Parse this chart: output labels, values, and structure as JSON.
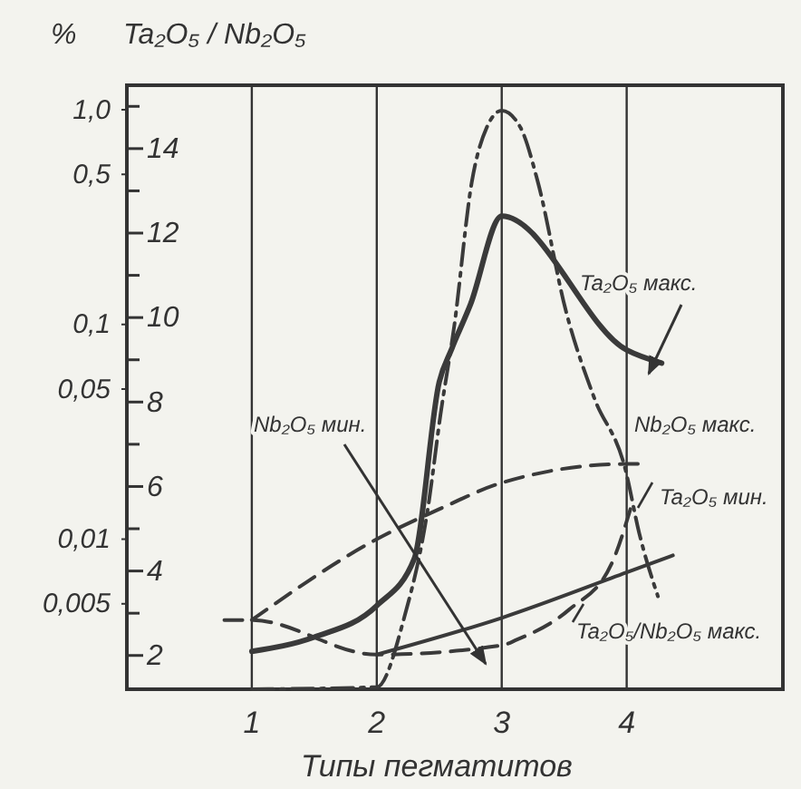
{
  "chart_data": {
    "type": "line",
    "xlabel": "Типы пегматитов",
    "ylabel": "Ta₂O₅ / Nb₂O₅",
    "y2label": "%",
    "xlim": [
      0,
      5.25
    ],
    "xticks": [
      1,
      2,
      3,
      4
    ],
    "ylim": [
      1.2,
      15.5
    ],
    "yticks": [
      2,
      {
        "value": 3,
        "label": null
      },
      4,
      {
        "value": 5,
        "label": null
      },
      6,
      {
        "value": 7,
        "label": null
      },
      8,
      {
        "value": 9,
        "label": null
      },
      10,
      {
        "value": 11,
        "label": null
      },
      12,
      {
        "value": 13,
        "label": null
      },
      14,
      {
        "value": 15,
        "label": null
      }
    ],
    "y2lim": [
      0.002,
      1.3
    ],
    "y2ticks": [
      {
        "value": 1,
        "label": "1,0"
      },
      {
        "value": 0.5,
        "label": "0,5"
      },
      {
        "value": 0.1,
        "label": "0,1"
      },
      {
        "value": 0.05,
        "label": "0,05"
      },
      {
        "value": 0.01,
        "label": "0,01"
      },
      {
        "value": 0.005,
        "label": "0,005"
      }
    ],
    "log": "y2",
    "grid": "x",
    "marker": "none",
    "series": [
      {
        "color": "#3a3a3a",
        "axis": "y2",
        "line_style": "solid",
        "x": [
          1,
          1.5,
          2,
          2.3,
          2.5,
          2.6,
          2.75,
          3,
          4,
          4.28
        ],
        "values": [
          0.003,
          0.0035,
          0.0049,
          0.0081,
          0.054,
          0.077,
          0.124,
          0.32,
          0.076,
          0.066
        ]
      },
      {
        "color": "#3a3a3a",
        "axis": "y2",
        "line_style": "solid",
        "x": [
          2,
          3,
          4,
          4.37
        ],
        "values": [
          0.0029,
          0.0043,
          0.007,
          0.0084
        ]
      },
      {
        "color": "#3a3a3a",
        "axis": "y2",
        "line_style": "dashed",
        "x": [
          0.78,
          1,
          2,
          3,
          3.12,
          3.54,
          3.88,
          4.03
        ],
        "values": [
          0.0042,
          0.0042,
          0.0029,
          0.0032,
          0.0034,
          0.0047,
          0.0077,
          0.0138
        ]
      },
      {
        "color": "#3a3a3a",
        "axis": "y2",
        "line_style": "dashed",
        "x": [
          1,
          2,
          2.5,
          3,
          4,
          4.13
        ],
        "values": [
          0.0042,
          0.01,
          0.0138,
          0.0183,
          0.0224,
          0.0224
        ]
      },
      {
        "color": "#3a3a3a",
        "axis": "y",
        "line_style": "dashdot",
        "x": [
          1,
          2,
          2.22,
          2.41,
          2.51,
          2.62,
          2.76,
          2.88,
          3,
          3.15,
          3.29,
          3.51,
          3.74,
          3.99,
          4.1,
          4.25
        ],
        "values": [
          1.2,
          1.25,
          2.9,
          5.5,
          7.7,
          9.8,
          13.2,
          14.5,
          14.9,
          14.5,
          13.2,
          10.2,
          8.1,
          6.4,
          4.9,
          3.4
        ]
      }
    ],
    "annotations": [
      "Ta₂O₅ макс.",
      "Nb₂O₅ мин.",
      "Nb₂O₅ макс.",
      "Ta₂O₅ мин.",
      "Ta₂O₅/Nb₂O₅ макс."
    ]
  }
}
